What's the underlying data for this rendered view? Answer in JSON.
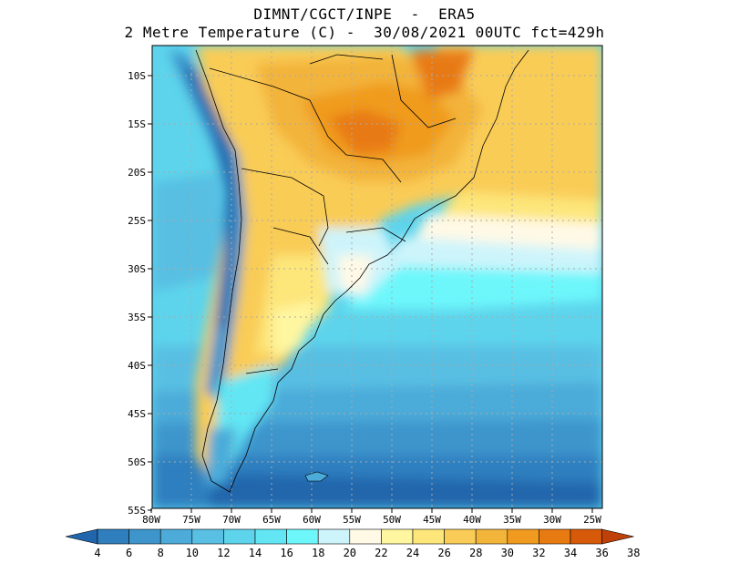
{
  "title": {
    "line1": "DIMNT/CGCT/INPE  -  ERA5",
    "line2": "2 Metre Temperature (C) -  30/08/2021 00UTC fct=429h"
  },
  "map": {
    "lon_ticks": [
      "80W",
      "75W",
      "70W",
      "65W",
      "60W",
      "55W",
      "50W",
      "45W",
      "40W",
      "35W",
      "30W",
      "25W"
    ],
    "lat_ticks": [
      "10S",
      "15S",
      "20S",
      "25S",
      "30S",
      "35S",
      "40S",
      "45S",
      "50S",
      "55S"
    ]
  },
  "colorbar": {
    "labels": [
      "4",
      "6",
      "8",
      "10",
      "12",
      "14",
      "16",
      "18",
      "20",
      "22",
      "24",
      "26",
      "28",
      "30",
      "32",
      "34",
      "36",
      "38"
    ],
    "colors": [
      "#2166ac",
      "#2f7fbf",
      "#3d95cc",
      "#4cabd9",
      "#59bfe3",
      "#5dd4ec",
      "#62e6f4",
      "#6df7fb",
      "#cdf4fb",
      "#fff9e6",
      "#fff6a0",
      "#fde67a",
      "#f9cc57",
      "#f3b43a",
      "#f09b1f",
      "#e87a12",
      "#d65a0a",
      "#bf4008"
    ]
  }
}
